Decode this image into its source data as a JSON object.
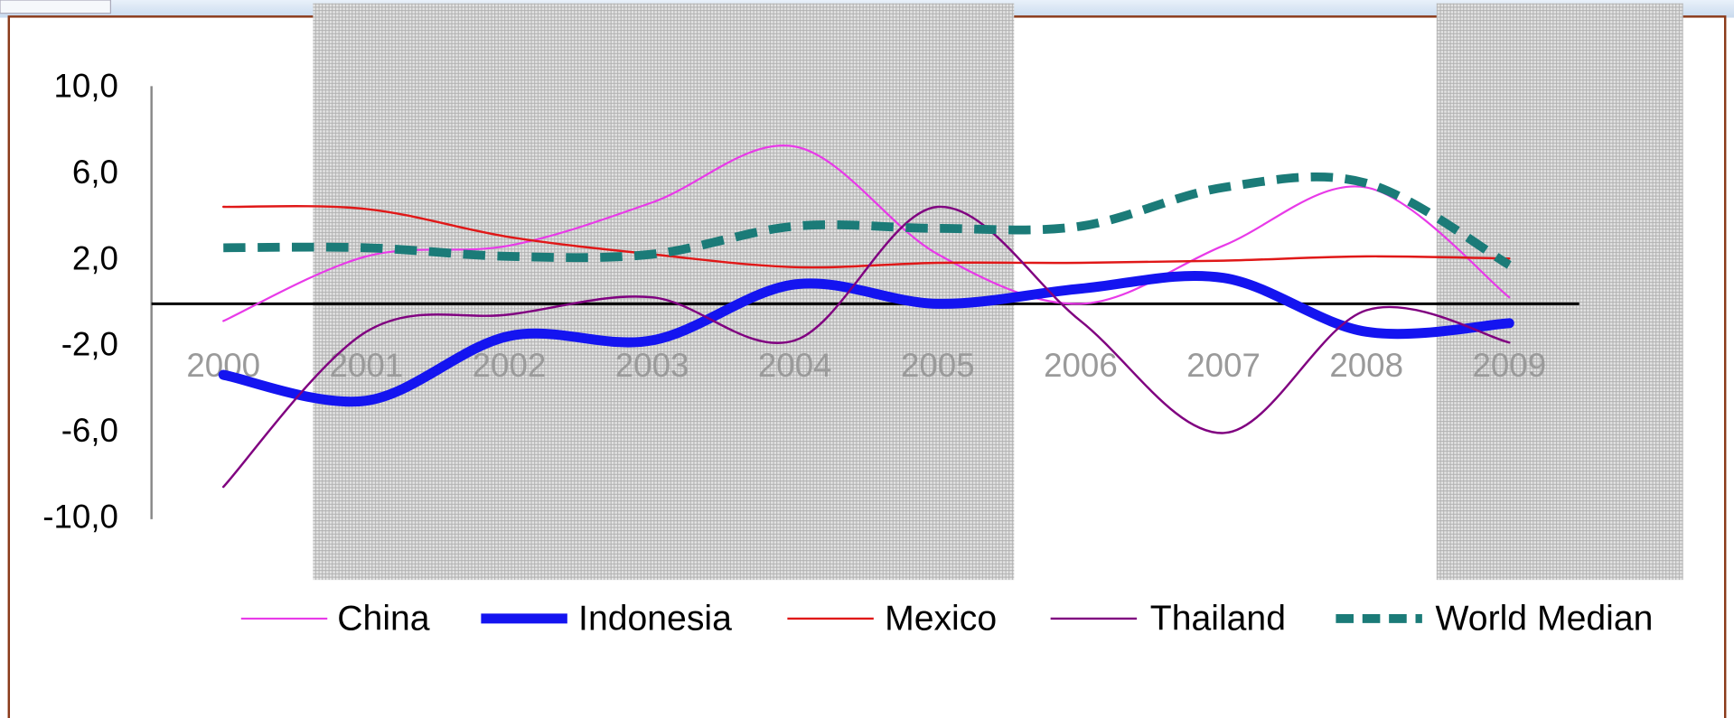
{
  "chart_data": {
    "type": "line",
    "categories": [
      "2000",
      "2001",
      "2002",
      "2003",
      "2004",
      "2005",
      "2006",
      "2007",
      "2008",
      "2009"
    ],
    "series": [
      {
        "name": "China",
        "color": "#e83ae8",
        "values": [
          -0.8,
          2.2,
          2.7,
          4.7,
          7.3,
          2.3,
          0.0,
          2.7,
          5.4,
          0.3
        ]
      },
      {
        "name": "Indonesia",
        "color": "#1414f0",
        "values": [
          -3.3,
          -4.5,
          -1.5,
          -1.7,
          0.9,
          0.0,
          0.7,
          1.2,
          -1.3,
          -0.9
        ]
      },
      {
        "name": "Mexico",
        "color": "#e01818",
        "values": [
          4.5,
          4.4,
          3.1,
          2.3,
          1.7,
          1.9,
          1.9,
          2.0,
          2.2,
          2.1
        ]
      },
      {
        "name": "Thailand",
        "color": "#800080",
        "values": [
          -8.5,
          -1.3,
          -0.5,
          0.3,
          -1.7,
          4.5,
          -0.8,
          -6.0,
          -0.3,
          -1.8
        ]
      },
      {
        "name": "World Median",
        "color": "#1b7b78",
        "values": [
          2.6,
          2.6,
          2.2,
          2.3,
          3.6,
          3.5,
          3.6,
          5.4,
          5.6,
          1.8
        ]
      }
    ],
    "ylim": [
      -10,
      10
    ],
    "yticks": [
      {
        "value": 10,
        "label": "10,0"
      },
      {
        "value": 6,
        "label": "6,0"
      },
      {
        "value": 2,
        "label": "2,0"
      },
      {
        "value": -2,
        "label": "-2,0"
      },
      {
        "value": -6,
        "label": "-6,0"
      },
      {
        "value": -10,
        "label": "-10,0"
      }
    ]
  }
}
